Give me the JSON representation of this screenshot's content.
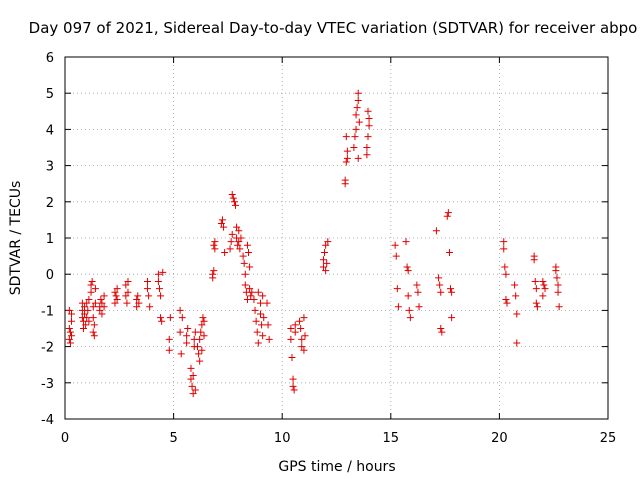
{
  "chart_data": {
    "type": "scatter",
    "title": "Day 097 of 2021, Sidereal Day-to-day VTEC variation (SDTVAR) for receiver abpo",
    "xlabel": "GPS time / hours",
    "ylabel": "SDTVAR / TECUs",
    "xlim": [
      0,
      25
    ],
    "ylim": [
      -4,
      6
    ],
    "xticks": [
      0,
      5,
      10,
      15,
      20,
      25
    ],
    "yticks": [
      -4,
      -3,
      -2,
      -1,
      0,
      1,
      2,
      3,
      4,
      5,
      6
    ],
    "xtick_labels": [
      "0",
      "5",
      "10",
      "15",
      "20",
      "25"
    ],
    "ytick_labels": [
      "-4",
      "-3",
      "-2",
      "-1",
      "0",
      "1",
      "2",
      "3",
      "4",
      "5",
      "6"
    ],
    "grid": true,
    "marker": "+",
    "color": "#e00000",
    "series": [
      {
        "name": "SDTVAR",
        "points": [
          [
            0.2,
            -1.0
          ],
          [
            0.2,
            -1.5
          ],
          [
            0.2,
            -1.8
          ],
          [
            0.25,
            -1.9
          ],
          [
            0.25,
            -1.6
          ],
          [
            0.3,
            -1.3
          ],
          [
            0.3,
            -1.7
          ],
          [
            0.3,
            -1.1
          ],
          [
            0.8,
            -1.0
          ],
          [
            0.8,
            -1.2
          ],
          [
            0.8,
            -0.8
          ],
          [
            0.85,
            -1.3
          ],
          [
            0.85,
            -1.5
          ],
          [
            0.9,
            -0.9
          ],
          [
            0.9,
            -1.1
          ],
          [
            0.95,
            -1.4
          ],
          [
            1.0,
            -0.8
          ],
          [
            1.0,
            -1.2
          ],
          [
            1.05,
            -1.0
          ],
          [
            1.1,
            -0.7
          ],
          [
            1.1,
            -1.3
          ],
          [
            1.2,
            -0.3
          ],
          [
            1.2,
            -0.5
          ],
          [
            1.25,
            -0.2
          ],
          [
            1.3,
            -0.9
          ],
          [
            1.3,
            -1.2
          ],
          [
            1.3,
            -1.6
          ],
          [
            1.35,
            -1.7
          ],
          [
            1.35,
            -1.4
          ],
          [
            1.4,
            -0.4
          ],
          [
            1.4,
            -0.8
          ],
          [
            1.6,
            -0.9
          ],
          [
            1.6,
            -1.0
          ],
          [
            1.65,
            -0.7
          ],
          [
            1.7,
            -0.8
          ],
          [
            1.7,
            -1.1
          ],
          [
            1.8,
            -0.9
          ],
          [
            1.8,
            -0.6
          ],
          [
            2.3,
            -0.5
          ],
          [
            2.3,
            -0.8
          ],
          [
            2.35,
            -0.6
          ],
          [
            2.4,
            -0.7
          ],
          [
            2.4,
            -0.4
          ],
          [
            2.8,
            -0.3
          ],
          [
            2.8,
            -0.6
          ],
          [
            2.85,
            -0.8
          ],
          [
            2.9,
            -0.5
          ],
          [
            2.9,
            -0.2
          ],
          [
            3.3,
            -0.7
          ],
          [
            3.3,
            -0.9
          ],
          [
            3.35,
            -0.6
          ],
          [
            3.4,
            -0.8
          ],
          [
            3.8,
            -0.2
          ],
          [
            3.8,
            -0.4
          ],
          [
            3.85,
            -0.6
          ],
          [
            3.9,
            -0.9
          ],
          [
            4.3,
            0.0
          ],
          [
            4.3,
            -0.2
          ],
          [
            4.35,
            -0.4
          ],
          [
            4.4,
            -0.6
          ],
          [
            4.4,
            -1.2
          ],
          [
            4.45,
            -1.3
          ],
          [
            4.5,
            0.05
          ],
          [
            4.8,
            -1.8
          ],
          [
            4.8,
            -2.1
          ],
          [
            4.85,
            -1.2
          ],
          [
            5.3,
            -1.0
          ],
          [
            5.3,
            -1.6
          ],
          [
            5.35,
            -2.2
          ],
          [
            5.4,
            -1.2
          ],
          [
            5.6,
            -1.7
          ],
          [
            5.6,
            -1.9
          ],
          [
            5.65,
            -1.5
          ],
          [
            5.8,
            -2.6
          ],
          [
            5.8,
            -2.9
          ],
          [
            5.85,
            -3.1
          ],
          [
            5.9,
            -3.3
          ],
          [
            5.9,
            -2.8
          ],
          [
            5.95,
            -1.8
          ],
          [
            5.95,
            -2.0
          ],
          [
            6.0,
            -3.2
          ],
          [
            6.0,
            -1.6
          ],
          [
            6.1,
            -2.0
          ],
          [
            6.15,
            -2.2
          ],
          [
            6.2,
            -2.4
          ],
          [
            6.2,
            -1.8
          ],
          [
            6.25,
            -1.6
          ],
          [
            6.3,
            -2.1
          ],
          [
            6.3,
            -1.4
          ],
          [
            6.35,
            -1.2
          ],
          [
            6.4,
            -1.7
          ],
          [
            6.4,
            -1.3
          ],
          [
            6.8,
            0.0
          ],
          [
            6.8,
            -0.1
          ],
          [
            6.85,
            0.1
          ],
          [
            6.9,
            0.7
          ],
          [
            6.9,
            0.9
          ],
          [
            6.85,
            0.8
          ],
          [
            7.2,
            1.4
          ],
          [
            7.25,
            1.5
          ],
          [
            7.3,
            1.3
          ],
          [
            7.35,
            0.6
          ],
          [
            7.6,
            0.7
          ],
          [
            7.65,
            0.9
          ],
          [
            7.7,
            1.1
          ],
          [
            7.7,
            2.2
          ],
          [
            7.75,
            2.1
          ],
          [
            7.8,
            2.0
          ],
          [
            7.85,
            1.9
          ],
          [
            7.9,
            1.3
          ],
          [
            7.9,
            1.0
          ],
          [
            7.95,
            0.8
          ],
          [
            8.0,
            0.9
          ],
          [
            8.0,
            1.2
          ],
          [
            8.05,
            0.7
          ],
          [
            8.1,
            1.0
          ],
          [
            8.2,
            0.5
          ],
          [
            8.25,
            0.3
          ],
          [
            8.3,
            0.0
          ],
          [
            8.3,
            -0.3
          ],
          [
            8.35,
            -0.5
          ],
          [
            8.4,
            -0.7
          ],
          [
            8.4,
            0.8
          ],
          [
            8.45,
            0.6
          ],
          [
            8.5,
            0.2
          ],
          [
            8.5,
            -0.4
          ],
          [
            8.55,
            -0.6
          ],
          [
            8.6,
            -0.5
          ],
          [
            8.7,
            -0.7
          ],
          [
            8.75,
            -1.0
          ],
          [
            8.8,
            -1.3
          ],
          [
            8.85,
            -1.6
          ],
          [
            8.9,
            -1.9
          ],
          [
            8.9,
            -0.5
          ],
          [
            9.0,
            -0.8
          ],
          [
            9.0,
            -1.1
          ],
          [
            9.05,
            -1.4
          ],
          [
            9.1,
            -1.7
          ],
          [
            9.1,
            -0.6
          ],
          [
            9.15,
            -1.2
          ],
          [
            9.3,
            -0.8
          ],
          [
            9.35,
            -1.4
          ],
          [
            9.4,
            -1.8
          ],
          [
            10.4,
            -1.5
          ],
          [
            10.4,
            -1.8
          ],
          [
            10.45,
            -2.3
          ],
          [
            10.5,
            -2.9
          ],
          [
            10.5,
            -3.1
          ],
          [
            10.55,
            -3.2
          ],
          [
            10.6,
            -1.6
          ],
          [
            10.6,
            -1.4
          ],
          [
            10.8,
            -1.3
          ],
          [
            10.85,
            -1.5
          ],
          [
            10.9,
            -1.8
          ],
          [
            10.9,
            -2.0
          ],
          [
            11.0,
            -2.1
          ],
          [
            11.0,
            -1.2
          ],
          [
            11.05,
            -1.7
          ],
          [
            11.9,
            0.2
          ],
          [
            11.9,
            0.4
          ],
          [
            11.95,
            0.6
          ],
          [
            12.0,
            0.8
          ],
          [
            12.0,
            0.1
          ],
          [
            12.05,
            0.3
          ],
          [
            12.1,
            0.9
          ],
          [
            12.9,
            2.5
          ],
          [
            12.9,
            2.6
          ],
          [
            12.95,
            3.1
          ],
          [
            13.0,
            3.2
          ],
          [
            13.0,
            3.4
          ],
          [
            12.95,
            3.8
          ],
          [
            13.3,
            3.5
          ],
          [
            13.35,
            3.8
          ],
          [
            13.4,
            4.0
          ],
          [
            13.4,
            4.4
          ],
          [
            13.45,
            4.6
          ],
          [
            13.5,
            5.0
          ],
          [
            13.5,
            4.8
          ],
          [
            13.5,
            3.2
          ],
          [
            13.55,
            4.2
          ],
          [
            13.9,
            3.3
          ],
          [
            13.9,
            3.5
          ],
          [
            13.95,
            3.8
          ],
          [
            14.0,
            4.1
          ],
          [
            14.0,
            4.3
          ],
          [
            13.95,
            4.5
          ],
          [
            15.2,
            0.8
          ],
          [
            15.25,
            0.5
          ],
          [
            15.3,
            -0.4
          ],
          [
            15.35,
            -0.9
          ],
          [
            15.7,
            0.9
          ],
          [
            15.75,
            0.2
          ],
          [
            15.8,
            0.1
          ],
          [
            15.8,
            -0.6
          ],
          [
            15.85,
            -1.0
          ],
          [
            15.9,
            -1.2
          ],
          [
            16.2,
            -0.3
          ],
          [
            16.25,
            -0.5
          ],
          [
            16.3,
            -0.9
          ],
          [
            17.1,
            1.2
          ],
          [
            17.2,
            -0.1
          ],
          [
            17.25,
            -0.3
          ],
          [
            17.3,
            -0.5
          ],
          [
            17.3,
            -1.5
          ],
          [
            17.35,
            -1.6
          ],
          [
            17.6,
            1.6
          ],
          [
            17.65,
            1.7
          ],
          [
            17.7,
            0.6
          ],
          [
            17.75,
            -0.4
          ],
          [
            17.8,
            -0.5
          ],
          [
            17.8,
            -1.2
          ],
          [
            20.2,
            0.9
          ],
          [
            20.2,
            0.7
          ],
          [
            20.25,
            0.2
          ],
          [
            20.3,
            0.0
          ],
          [
            20.3,
            -0.7
          ],
          [
            20.35,
            -0.8
          ],
          [
            20.7,
            -0.3
          ],
          [
            20.75,
            -0.6
          ],
          [
            20.8,
            -1.1
          ],
          [
            20.8,
            -1.9
          ],
          [
            21.6,
            0.5
          ],
          [
            21.6,
            0.4
          ],
          [
            21.65,
            -0.2
          ],
          [
            21.7,
            -0.4
          ],
          [
            21.7,
            -0.8
          ],
          [
            21.75,
            -0.9
          ],
          [
            22.0,
            -0.2
          ],
          [
            22.0,
            -0.6
          ],
          [
            22.05,
            -0.3
          ],
          [
            22.1,
            -0.4
          ],
          [
            22.6,
            0.2
          ],
          [
            22.6,
            0.1
          ],
          [
            22.65,
            -0.1
          ],
          [
            22.7,
            -0.3
          ],
          [
            22.7,
            -0.5
          ],
          [
            22.75,
            -0.9
          ]
        ]
      }
    ]
  }
}
